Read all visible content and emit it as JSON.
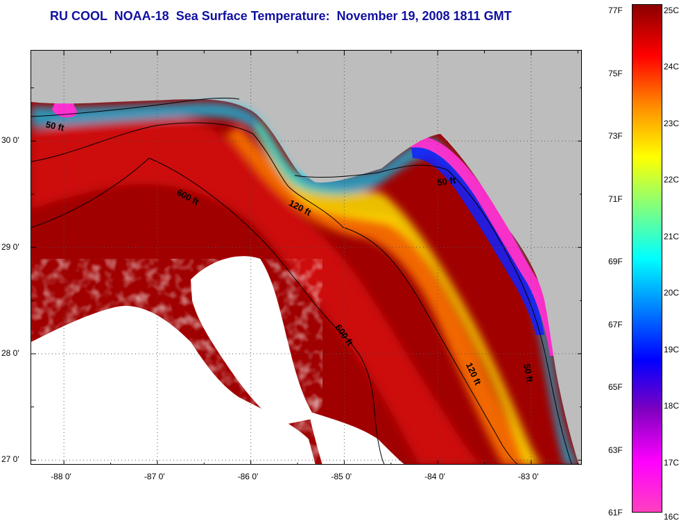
{
  "title": "RU COOL  NOAA-18  Sea Surface Temperature:  November 19, 2008 1811 GMT",
  "map": {
    "lon_range": [
      -88.35,
      -82.45
    ],
    "lat_range": [
      26.95,
      30.85
    ],
    "lon_ticks": [
      {
        "value": -88,
        "label": "-88 0'"
      },
      {
        "value": -87,
        "label": "-87 0'"
      },
      {
        "value": -86,
        "label": "-86 0'"
      },
      {
        "value": -85,
        "label": "-85 0'"
      },
      {
        "value": -84,
        "label": "-84 0'"
      },
      {
        "value": -83,
        "label": "-83 0'"
      }
    ],
    "lat_ticks": [
      {
        "value": 30,
        "label": "30 0'"
      },
      {
        "value": 29,
        "label": "29 0'"
      },
      {
        "value": 28,
        "label": "28 0'"
      },
      {
        "value": 27,
        "label": "27 0'"
      }
    ],
    "contour_labels": [
      {
        "text": "50 ft",
        "lon": -88.2,
        "lat": 30.13,
        "angle": 12
      },
      {
        "text": "600 ft",
        "lon": -86.8,
        "lat": 29.5,
        "angle": 28
      },
      {
        "text": "120 ft",
        "lon": -85.6,
        "lat": 29.4,
        "angle": 28
      },
      {
        "text": "50 ft",
        "lon": -84.0,
        "lat": 29.58,
        "angle": -8
      },
      {
        "text": "600 ft",
        "lon": -85.1,
        "lat": 28.25,
        "angle": 55
      },
      {
        "text": "120 ft",
        "lon": -83.7,
        "lat": 27.9,
        "angle": 65
      },
      {
        "text": "50 ft",
        "lon": -83.08,
        "lat": 27.9,
        "angle": 80
      }
    ],
    "colors": {
      "land": "#bdbdbd",
      "cloud": "#ffffff",
      "contour": "#000000"
    }
  },
  "colorbar": {
    "fahrenheit": [
      {
        "value": 77,
        "label": "77F"
      },
      {
        "value": 75,
        "label": "75F"
      },
      {
        "value": 73,
        "label": "73F"
      },
      {
        "value": 71,
        "label": "71F"
      },
      {
        "value": 69,
        "label": "69F"
      },
      {
        "value": 67,
        "label": "67F"
      },
      {
        "value": 65,
        "label": "65F"
      },
      {
        "value": 63,
        "label": "63F"
      },
      {
        "value": 61,
        "label": "61F"
      }
    ],
    "celsius": [
      {
        "value": 25,
        "label": "25C"
      },
      {
        "value": 24,
        "label": "24C"
      },
      {
        "value": 23,
        "label": "23C"
      },
      {
        "value": 22,
        "label": "22C"
      },
      {
        "value": 21,
        "label": "21C"
      },
      {
        "value": 20,
        "label": "20C"
      },
      {
        "value": 19,
        "label": "19C"
      },
      {
        "value": 18,
        "label": "18C"
      },
      {
        "value": 17,
        "label": "17C"
      },
      {
        "value": 16,
        "label": "16C"
      }
    ],
    "color_stops": [
      "#8b0000",
      "#ff0000",
      "#ff8c00",
      "#ffff00",
      "#7fff7f",
      "#00ffff",
      "#0080ff",
      "#0000ff",
      "#8000c0",
      "#ff00ff",
      "#ff40c0"
    ]
  }
}
